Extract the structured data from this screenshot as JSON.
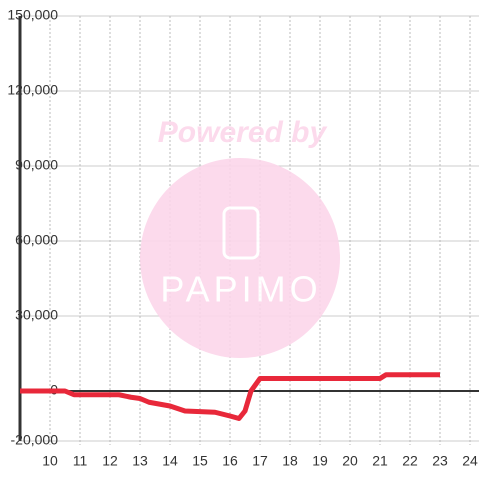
{
  "chart_data": {
    "type": "line",
    "watermark": {
      "top": "Powered by",
      "logo": "PAPIMO"
    },
    "x": [
      9,
      10.5,
      10.8,
      12.3,
      12.7,
      13,
      13.3,
      14,
      14.5,
      15.5,
      16,
      16.3,
      16.5,
      16.7,
      17,
      21,
      21.2,
      23
    ],
    "series": [
      {
        "color": "#e8283a",
        "values": [
          0,
          0,
          -1500,
          -1500,
          -2500,
          -3000,
          -4500,
          -6000,
          -8000,
          -8500,
          -10000,
          -11000,
          -8000,
          0,
          5000,
          5000,
          6500,
          6500
        ]
      }
    ],
    "xlim": [
      9,
      24.3
    ],
    "xticks": [
      10,
      11,
      12,
      13,
      14,
      15,
      16,
      17,
      18,
      19,
      20,
      21,
      22,
      23,
      24
    ],
    "ylim": [
      -20000,
      150000
    ],
    "yticks": [
      {
        "value": -20000,
        "label": "-20,000"
      },
      0,
      {
        "value": 30000,
        "label": "30,000"
      },
      {
        "value": 60000,
        "label": "60,000"
      },
      {
        "value": 90000,
        "label": "90,000"
      },
      {
        "value": 120000,
        "label": "120,000"
      },
      {
        "value": 150000,
        "label": "150,000"
      }
    ],
    "grid": true
  }
}
